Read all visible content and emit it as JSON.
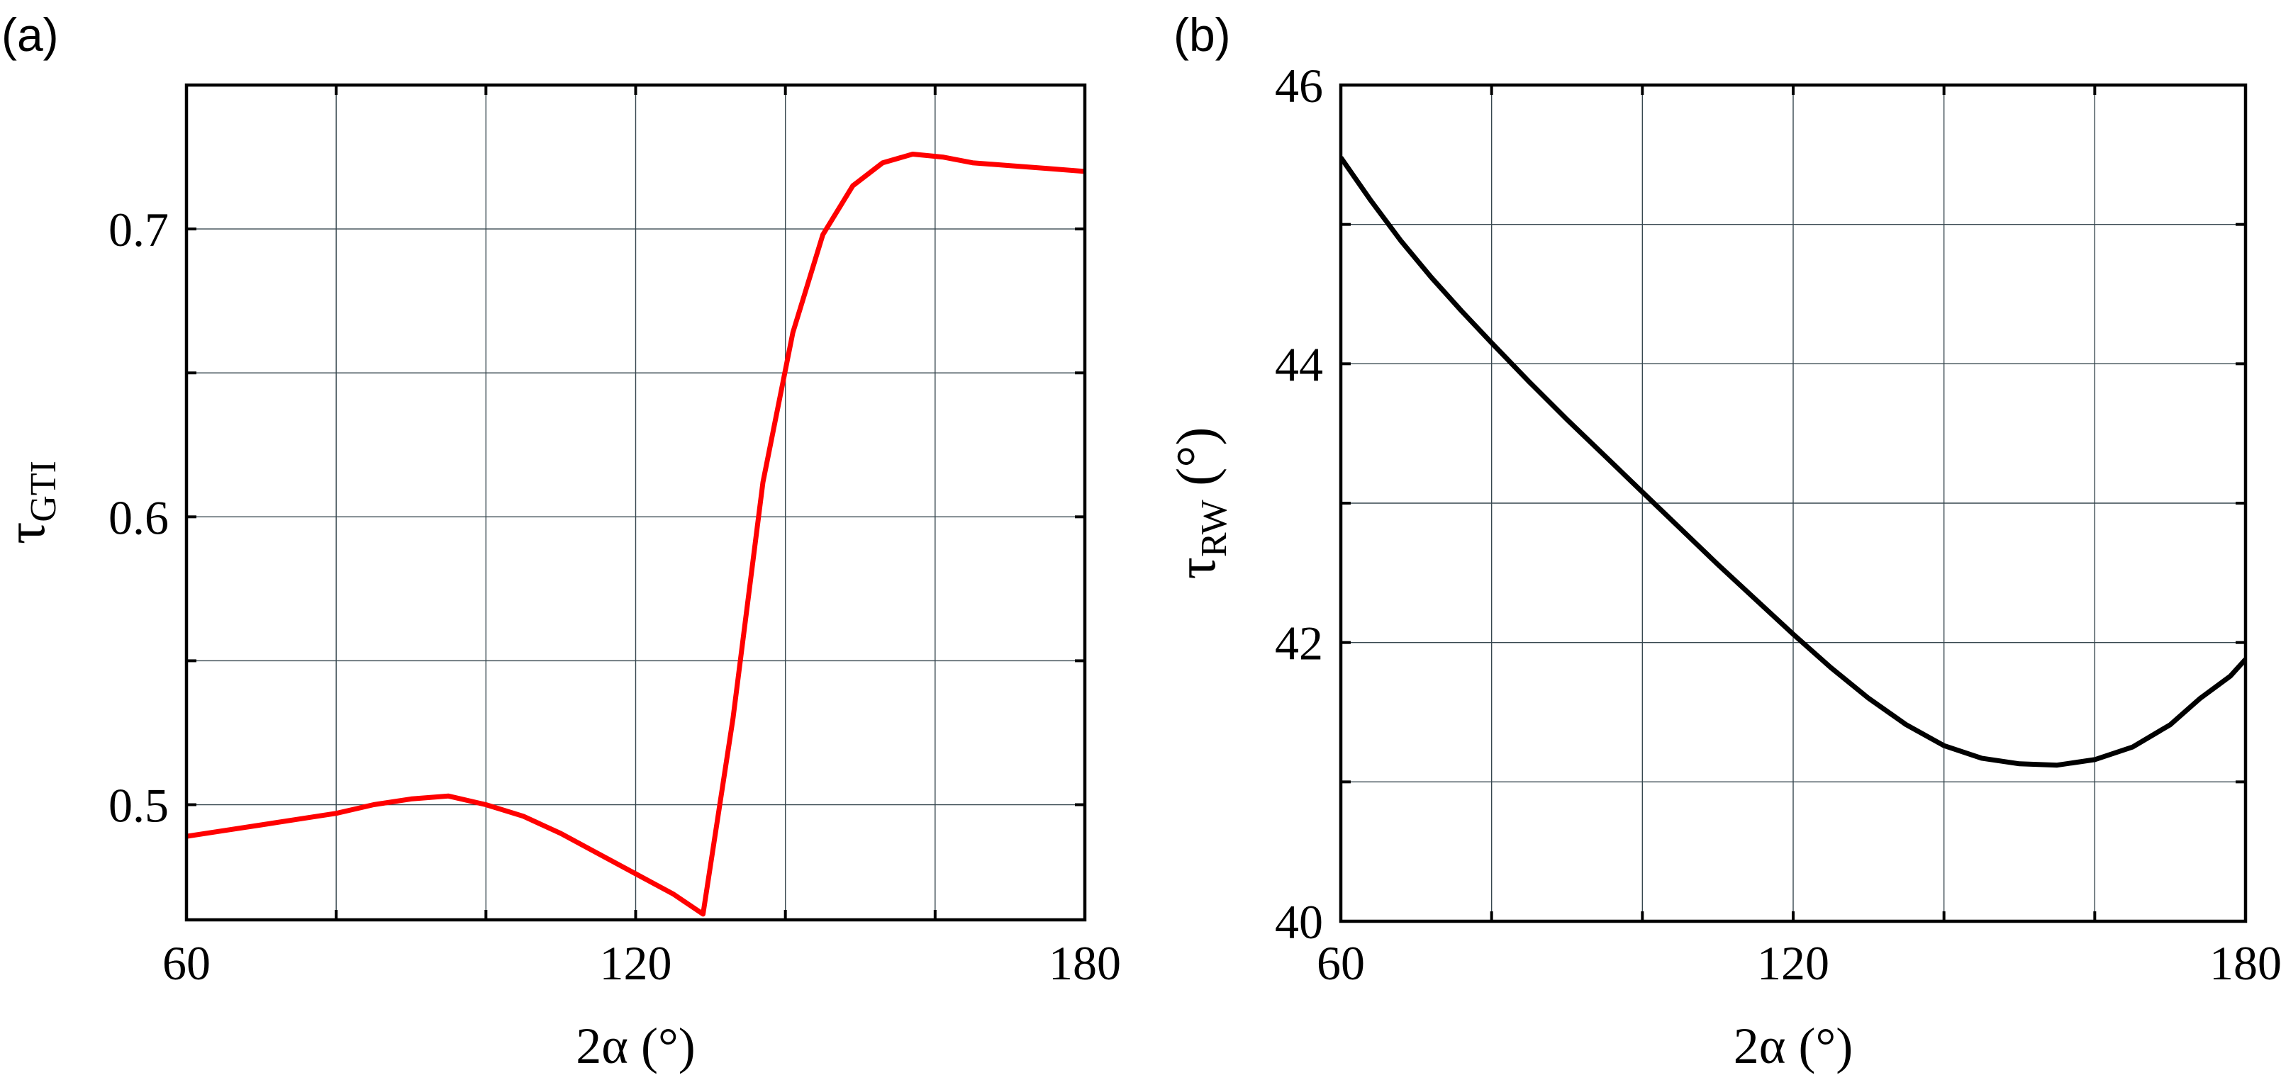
{
  "chart_data": [
    {
      "panel": "(a)",
      "type": "line",
      "xlabel": "2α (°)",
      "ylabel": "τ_GTI",
      "xlim": [
        60,
        180
      ],
      "ylim": [
        0.46,
        0.75
      ],
      "x_ticks": [
        60,
        120,
        180
      ],
      "x_tick_labels": [
        "60",
        "120",
        "180"
      ],
      "y_ticks": [
        0.5,
        0.6,
        0.7
      ],
      "y_tick_labels": [
        "0.5",
        "0.6",
        "0.7"
      ],
      "x_grid": [
        80,
        100,
        120,
        140,
        160
      ],
      "y_grid": [
        0.5,
        0.55,
        0.6,
        0.65,
        0.7
      ],
      "grid": true,
      "line_color": "#ff0000",
      "series": [
        {
          "x": [
            60,
            65,
            70,
            75,
            80,
            85,
            90,
            95,
            100,
            105,
            110,
            115,
            120,
            125,
            129,
            133,
            137,
            141,
            145,
            149,
            153,
            157,
            161,
            165,
            170,
            175,
            180
          ],
          "y": [
            0.489,
            0.491,
            0.493,
            0.495,
            0.497,
            0.5,
            0.502,
            0.503,
            0.5,
            0.496,
            0.49,
            0.483,
            0.476,
            0.469,
            0.462,
            0.53,
            0.612,
            0.664,
            0.698,
            0.715,
            0.723,
            0.726,
            0.725,
            0.723,
            0.722,
            0.721,
            0.72
          ]
        }
      ]
    },
    {
      "panel": "(b)",
      "type": "line",
      "xlabel": "2α (°)",
      "ylabel": "τ_RW (°)",
      "xlim": [
        60,
        180
      ],
      "ylim": [
        40,
        46
      ],
      "x_ticks": [
        60,
        120,
        180
      ],
      "x_tick_labels": [
        "60",
        "120",
        "180"
      ],
      "y_ticks": [
        40,
        42,
        44,
        46
      ],
      "y_tick_labels": [
        "40",
        "42",
        "44",
        "46"
      ],
      "x_grid": [
        80,
        100,
        120,
        140,
        160
      ],
      "y_grid": [
        41,
        42,
        43,
        44,
        45
      ],
      "grid": true,
      "line_color": "#000000",
      "series": [
        {
          "x": [
            60,
            64,
            68,
            72,
            76,
            80,
            85,
            90,
            95,
            100,
            105,
            110,
            115,
            120,
            125,
            130,
            135,
            140,
            145,
            150,
            155,
            160,
            165,
            170,
            174,
            178,
            180
          ],
          "y": [
            45.48,
            45.17,
            44.88,
            44.62,
            44.38,
            44.15,
            43.87,
            43.6,
            43.34,
            43.08,
            42.82,
            42.56,
            42.31,
            42.06,
            41.82,
            41.6,
            41.41,
            41.26,
            41.17,
            41.13,
            41.12,
            41.16,
            41.25,
            41.41,
            41.6,
            41.76,
            41.88
          ]
        }
      ]
    }
  ]
}
